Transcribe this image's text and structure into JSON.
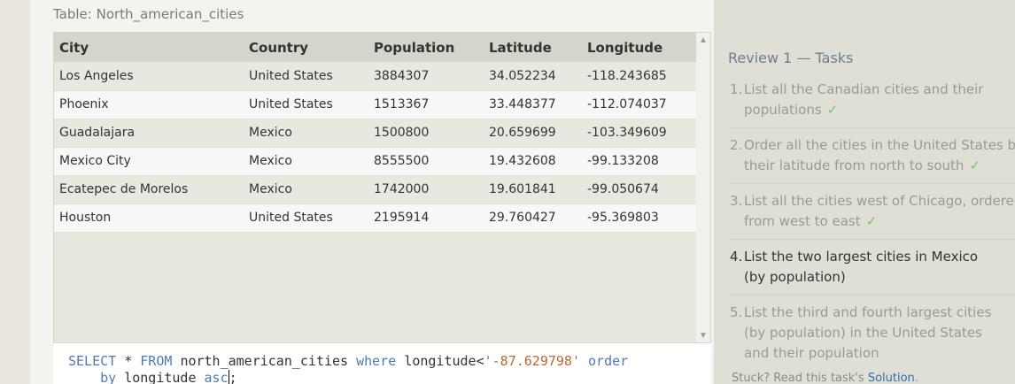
{
  "table_caption": "Table: North_american_cities",
  "table": {
    "columns": [
      "City",
      "Country",
      "Population",
      "Latitude",
      "Longitude"
    ],
    "rows": [
      [
        "Los Angeles",
        "United States",
        "3884307",
        "34.052234",
        "-118.243685"
      ],
      [
        "Phoenix",
        "United States",
        "1513367",
        "33.448377",
        "-112.074037"
      ],
      [
        "Guadalajara",
        "Mexico",
        "1500800",
        "20.659699",
        "-103.349609"
      ],
      [
        "Mexico City",
        "Mexico",
        "8555500",
        "19.432608",
        "-99.133208"
      ],
      [
        "Ecatepec de Morelos",
        "Mexico",
        "1742000",
        "19.601841",
        "-99.050674"
      ],
      [
        "Houston",
        "United States",
        "2195914",
        "29.760427",
        "-95.369803"
      ]
    ]
  },
  "query": {
    "kw_select": "SELECT",
    "star": "*",
    "kw_from": "FROM",
    "table_name": "north_american_cities",
    "kw_where": "where",
    "condition_col": "longitude<",
    "condition_val": "'-87.629798'",
    "kw_order": "order",
    "kw_by": "by",
    "order_col": "longitude",
    "dir_typed": "asc",
    "terminator": ";"
  },
  "panel": {
    "title": "Review 1 — Tasks",
    "tasks": [
      {
        "num": "1.",
        "text": "List all the Canadian cities and their populations",
        "done": true
      },
      {
        "num": "2.",
        "text": "Order all the cities in the United States by their latitude from north to south",
        "done": true
      },
      {
        "num": "3.",
        "text": "List all the cities west of Chicago, ordered from west to east",
        "done": true
      },
      {
        "num": "4.",
        "text": "List the two largest cities in Mexico (by population)",
        "done": false
      },
      {
        "num": "5.",
        "text": "List the third and fourth largest cities (by population) in the United States and their population",
        "done": false
      }
    ],
    "check_mark": "✓",
    "stuck_text": "Stuck? Read this task's",
    "solution_link": "Solution",
    "stuck_end": "."
  }
}
